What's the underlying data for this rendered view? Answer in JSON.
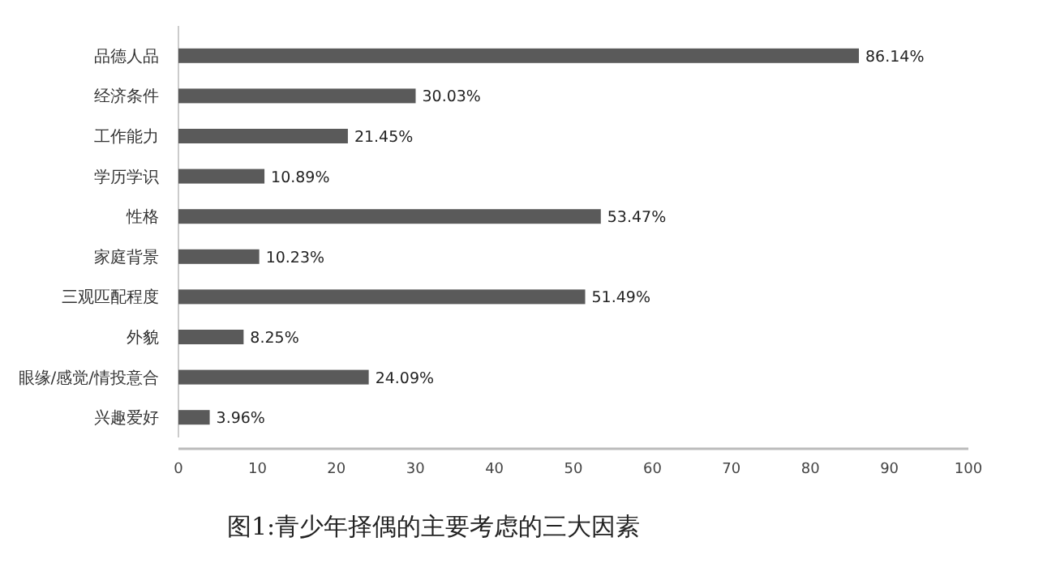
{
  "chart_data": {
    "type": "bar",
    "orientation": "horizontal",
    "categories": [
      "品德人品",
      "经济条件",
      "工作能力",
      "学历学识",
      "性格",
      "家庭背景",
      "三观匹配程度",
      "外貌",
      "眼缘/感觉/情投意合",
      "兴趣爱好"
    ],
    "values": [
      86.14,
      30.03,
      21.45,
      10.89,
      53.47,
      10.23,
      51.49,
      8.25,
      24.09,
      3.96
    ],
    "value_labels": [
      "86.14%",
      "30.03%",
      "21.45%",
      "10.89%",
      "53.47%",
      "10.23%",
      "51.49%",
      "8.25%",
      "24.09%",
      "3.96%"
    ],
    "color": "#5a5a5a",
    "xlim": [
      0,
      100
    ],
    "xticks": [
      0,
      10,
      20,
      30,
      40,
      50,
      60,
      70,
      80,
      90,
      100
    ],
    "grid": false,
    "annotations": [
      "图1:青少年择偶的主要考虑的三大因素"
    ]
  }
}
